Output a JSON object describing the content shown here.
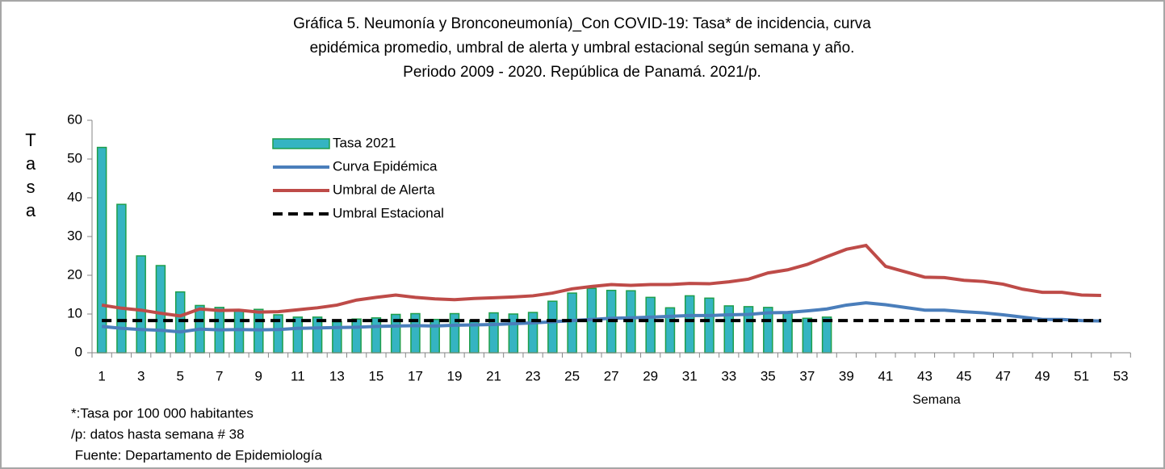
{
  "chart_data": {
    "type": "bar",
    "title": [
      "Gráfica 5. Neumonía y Bronconeumonía)_Con COVID-19: Tasa* de incidencia, curva",
      "epidémica promedio, umbral de alerta  y umbral estacional según semana y año.",
      "Periodo 2009 - 2020.  República de Panamá. 2021/p."
    ],
    "ylabel": "Tasa",
    "xlabel": "Semana",
    "notes": [
      "*:Tasa por 100 000 habitantes",
      "/p: datos hasta semana # 38",
      " Fuente: Departamento de Epidemiología"
    ],
    "categories": [
      1,
      null,
      3,
      null,
      5,
      null,
      7,
      null,
      9,
      null,
      11,
      null,
      13,
      null,
      15,
      null,
      17,
      null,
      19,
      null,
      21,
      null,
      23,
      null,
      25,
      null,
      27,
      null,
      29,
      null,
      31,
      null,
      33,
      null,
      35,
      null,
      37,
      null,
      39,
      null,
      41,
      null,
      43,
      null,
      45,
      null,
      47,
      null,
      49,
      null,
      51,
      null,
      53
    ],
    "ylim": [
      0,
      60
    ],
    "yticks": [
      0,
      10,
      20,
      30,
      40,
      50,
      60
    ],
    "grid": false,
    "legend": "top-left",
    "series": [
      {
        "name": "Tasa 2021",
        "type": "bar",
        "color": "#35b4c2",
        "edge_color": "#1f9e4a",
        "values": [
          53,
          38.3,
          25,
          22.5,
          15.7,
          12.2,
          11.7,
          10.9,
          11.2,
          9.8,
          9.2,
          9.2,
          8.0,
          8.7,
          9.0,
          9.9,
          10.1,
          8.6,
          10.1,
          8.4,
          10.3,
          10.0,
          10.4,
          13.3,
          15.4,
          16.6,
          16.1,
          16.0,
          14.3,
          11.6,
          14.7,
          14.1,
          12.1,
          11.9,
          11.7,
          10.3,
          8.9,
          9.2,
          null,
          null,
          null,
          null,
          null,
          null,
          null,
          null,
          null,
          null,
          null,
          null,
          null,
          null,
          null
        ]
      },
      {
        "name": "Curva Epidémica",
        "type": "line",
        "color": "#4a7ebb",
        "line_style": "solid",
        "values": [
          6.8,
          6.3,
          6.0,
          5.8,
          5.4,
          6.1,
          5.9,
          6.0,
          5.9,
          6.0,
          6.3,
          6.4,
          6.5,
          6.6,
          6.8,
          6.9,
          7.0,
          6.9,
          7.1,
          7.2,
          7.3,
          7.5,
          7.7,
          8.0,
          8.3,
          8.6,
          8.9,
          9.0,
          9.2,
          9.4,
          9.6,
          9.6,
          9.8,
          9.9,
          10.3,
          10.4,
          10.8,
          11.3,
          12.3,
          12.9,
          12.4,
          11.7,
          11.0,
          11.0,
          10.6,
          10.3,
          9.8,
          9.2,
          8.6,
          8.6,
          8.3,
          8.2,
          null
        ]
      },
      {
        "name": "Umbral de Alerta",
        "type": "line",
        "color": "#be4b48",
        "line_style": "solid",
        "values": [
          12.3,
          11.5,
          11.0,
          10.2,
          9.5,
          11.3,
          10.9,
          11.0,
          10.5,
          10.6,
          11.1,
          11.6,
          12.3,
          13.6,
          14.3,
          14.9,
          14.3,
          13.9,
          13.7,
          14.0,
          14.2,
          14.4,
          14.7,
          15.4,
          16.5,
          17.1,
          17.6,
          17.4,
          17.6,
          17.6,
          17.9,
          17.8,
          18.3,
          19.0,
          20.6,
          21.4,
          22.8,
          24.8,
          26.7,
          27.7,
          22.3,
          20.9,
          19.5,
          19.4,
          18.7,
          18.4,
          17.7,
          16.4,
          15.6,
          15.6,
          14.9,
          14.8,
          null
        ]
      },
      {
        "name": "Umbral Estacional",
        "type": "line",
        "color": "#000000",
        "line_style": "dashed",
        "values": [
          8.3,
          8.3,
          8.3,
          8.3,
          8.3,
          8.3,
          8.3,
          8.3,
          8.3,
          8.3,
          8.3,
          8.3,
          8.3,
          8.3,
          8.3,
          8.3,
          8.3,
          8.3,
          8.3,
          8.3,
          8.3,
          8.3,
          8.3,
          8.3,
          8.3,
          8.3,
          8.3,
          8.3,
          8.3,
          8.3,
          8.3,
          8.3,
          8.3,
          8.3,
          8.3,
          8.3,
          8.3,
          8.3,
          8.3,
          8.3,
          8.3,
          8.3,
          8.3,
          8.3,
          8.3,
          8.3,
          8.3,
          8.3,
          8.3,
          8.3,
          8.3,
          8.3,
          null
        ]
      }
    ]
  }
}
